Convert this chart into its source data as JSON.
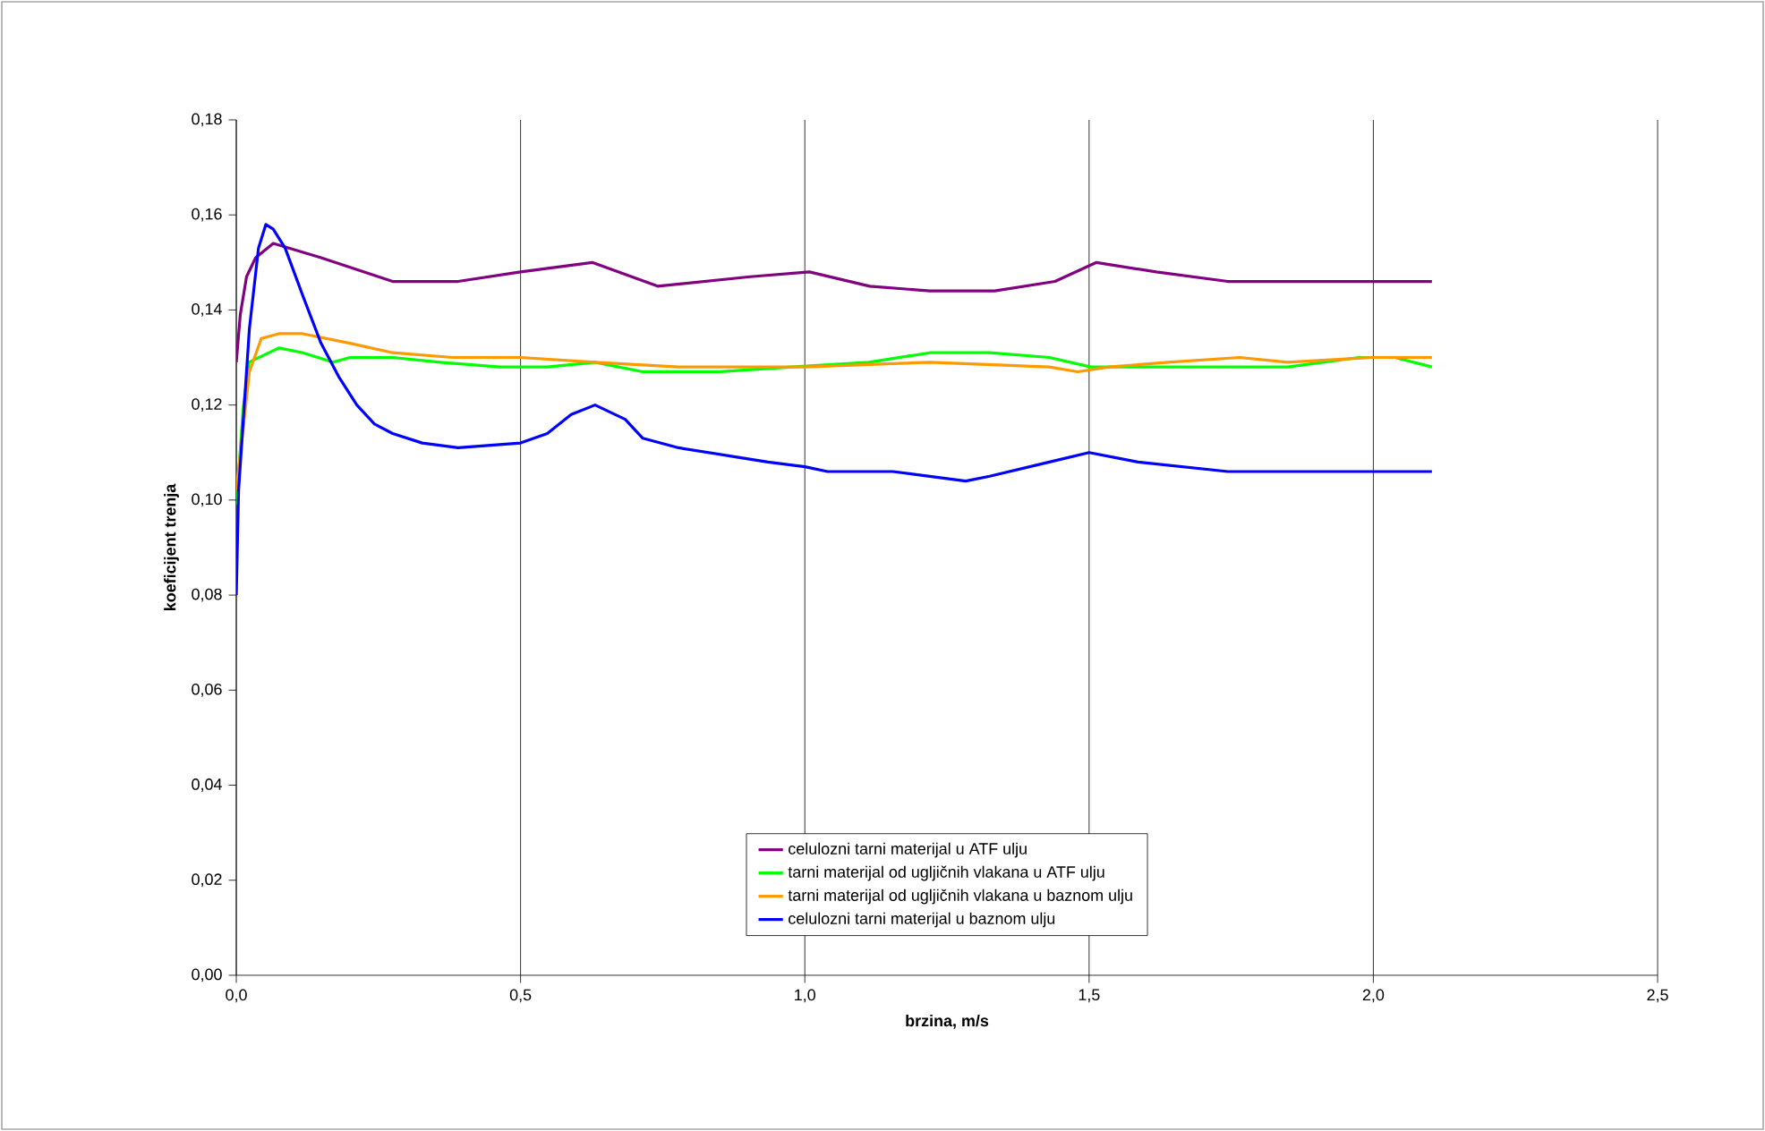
{
  "chart_data": {
    "type": "line",
    "xlabel": "brzina, m/s",
    "ylabel": "koeficijent trenja",
    "xlim": [
      0,
      2.5
    ],
    "ylim": [
      0,
      0.18
    ],
    "xticks": [
      {
        "value": 0,
        "label": "0,0"
      },
      {
        "value": 0.5,
        "label": "0,5"
      },
      {
        "value": 1.0,
        "label": "1,0"
      },
      {
        "value": 1.5,
        "label": "1,5"
      },
      {
        "value": 2.0,
        "label": "2,0"
      },
      {
        "value": 2.5,
        "label": "2,5"
      }
    ],
    "yticks": [
      {
        "value": 0,
        "label": "0,00"
      },
      {
        "value": 0.02,
        "label": "0,02"
      },
      {
        "value": 0.04,
        "label": "0,04"
      },
      {
        "value": 0.06,
        "label": "0,06"
      },
      {
        "value": 0.08,
        "label": "0,08"
      },
      {
        "value": 0.1,
        "label": "0,10"
      },
      {
        "value": 0.12,
        "label": "0,12"
      },
      {
        "value": 0.14,
        "label": "0,14"
      },
      {
        "value": 0.16,
        "label": "0,16"
      },
      {
        "value": 0.18,
        "label": "0,18"
      }
    ],
    "grid": "x",
    "legend": "bottom",
    "series": [
      {
        "name": "celulozni tarni materijal u ATF ulju",
        "color": "#800080",
        "x": [
          0,
          0.007,
          0.018,
          0.034,
          0.065,
          0.149,
          0.275,
          0.39,
          0.5,
          0.626,
          0.741,
          0.904,
          1.008,
          1.114,
          1.22,
          1.334,
          1.44,
          1.513,
          1.618,
          1.744,
          1.828,
          1.89,
          2.026,
          2.103
        ],
        "values": [
          0.129,
          0.139,
          0.147,
          0.151,
          0.154,
          0.151,
          0.146,
          0.146,
          0.148,
          0.15,
          0.145,
          0.147,
          0.148,
          0.145,
          0.144,
          0.144,
          0.146,
          0.15,
          0.148,
          0.146,
          0.146,
          0.146,
          0.146,
          0.146
        ]
      },
      {
        "name": "tarni materijal od ugljičnih vlakana u ATF ulju",
        "color": "#00ff00",
        "x": [
          0,
          0.012,
          0.022,
          0.075,
          0.117,
          0.17,
          0.2,
          0.275,
          0.358,
          0.463,
          0.547,
          0.631,
          0.715,
          0.851,
          0.977,
          1.113,
          1.22,
          1.325,
          1.43,
          1.503,
          1.639,
          1.849,
          1.975,
          2.038,
          2.103
        ],
        "values": [
          0.099,
          0.119,
          0.129,
          0.132,
          0.131,
          0.129,
          0.13,
          0.13,
          0.129,
          0.128,
          0.128,
          0.129,
          0.127,
          0.127,
          0.128,
          0.129,
          0.131,
          0.131,
          0.13,
          0.128,
          0.128,
          0.128,
          0.13,
          0.13,
          0.128
        ]
      },
      {
        "name": "tarni materijal od ugljičnih vlakana u baznom ulju",
        "color": "#ff9900",
        "x": [
          0,
          0.023,
          0.044,
          0.075,
          0.117,
          0.2,
          0.275,
          0.38,
          0.5,
          0.631,
          0.778,
          1.0,
          1.22,
          1.43,
          1.48,
          1.535,
          1.639,
          1.765,
          1.849,
          1.996,
          2.103
        ],
        "values": [
          0.102,
          0.127,
          0.134,
          0.135,
          0.135,
          0.133,
          0.131,
          0.13,
          0.13,
          0.129,
          0.128,
          0.128,
          0.129,
          0.128,
          0.127,
          0.128,
          0.129,
          0.13,
          0.129,
          0.13,
          0.13
        ]
      },
      {
        "name": "celulozni tarni materijal u baznom ulju",
        "color": "#0000ff",
        "x": [
          0,
          0.004,
          0.023,
          0.039,
          0.052,
          0.065,
          0.086,
          0.117,
          0.149,
          0.18,
          0.212,
          0.243,
          0.275,
          0.327,
          0.39,
          0.5,
          0.547,
          0.589,
          0.631,
          0.684,
          0.715,
          0.778,
          0.883,
          0.935,
          1.0,
          1.04,
          1.155,
          1.283,
          1.325,
          1.43,
          1.5,
          1.586,
          1.744,
          1.89,
          2.058,
          2.103
        ],
        "values": [
          0.08,
          0.102,
          0.136,
          0.153,
          0.158,
          0.157,
          0.153,
          0.143,
          0.133,
          0.126,
          0.12,
          0.116,
          0.114,
          0.112,
          0.111,
          0.112,
          0.114,
          0.118,
          0.12,
          0.117,
          0.113,
          0.111,
          0.109,
          0.108,
          0.107,
          0.106,
          0.106,
          0.104,
          0.105,
          0.108,
          0.11,
          0.108,
          0.106,
          0.106,
          0.106,
          0.106
        ]
      }
    ]
  }
}
